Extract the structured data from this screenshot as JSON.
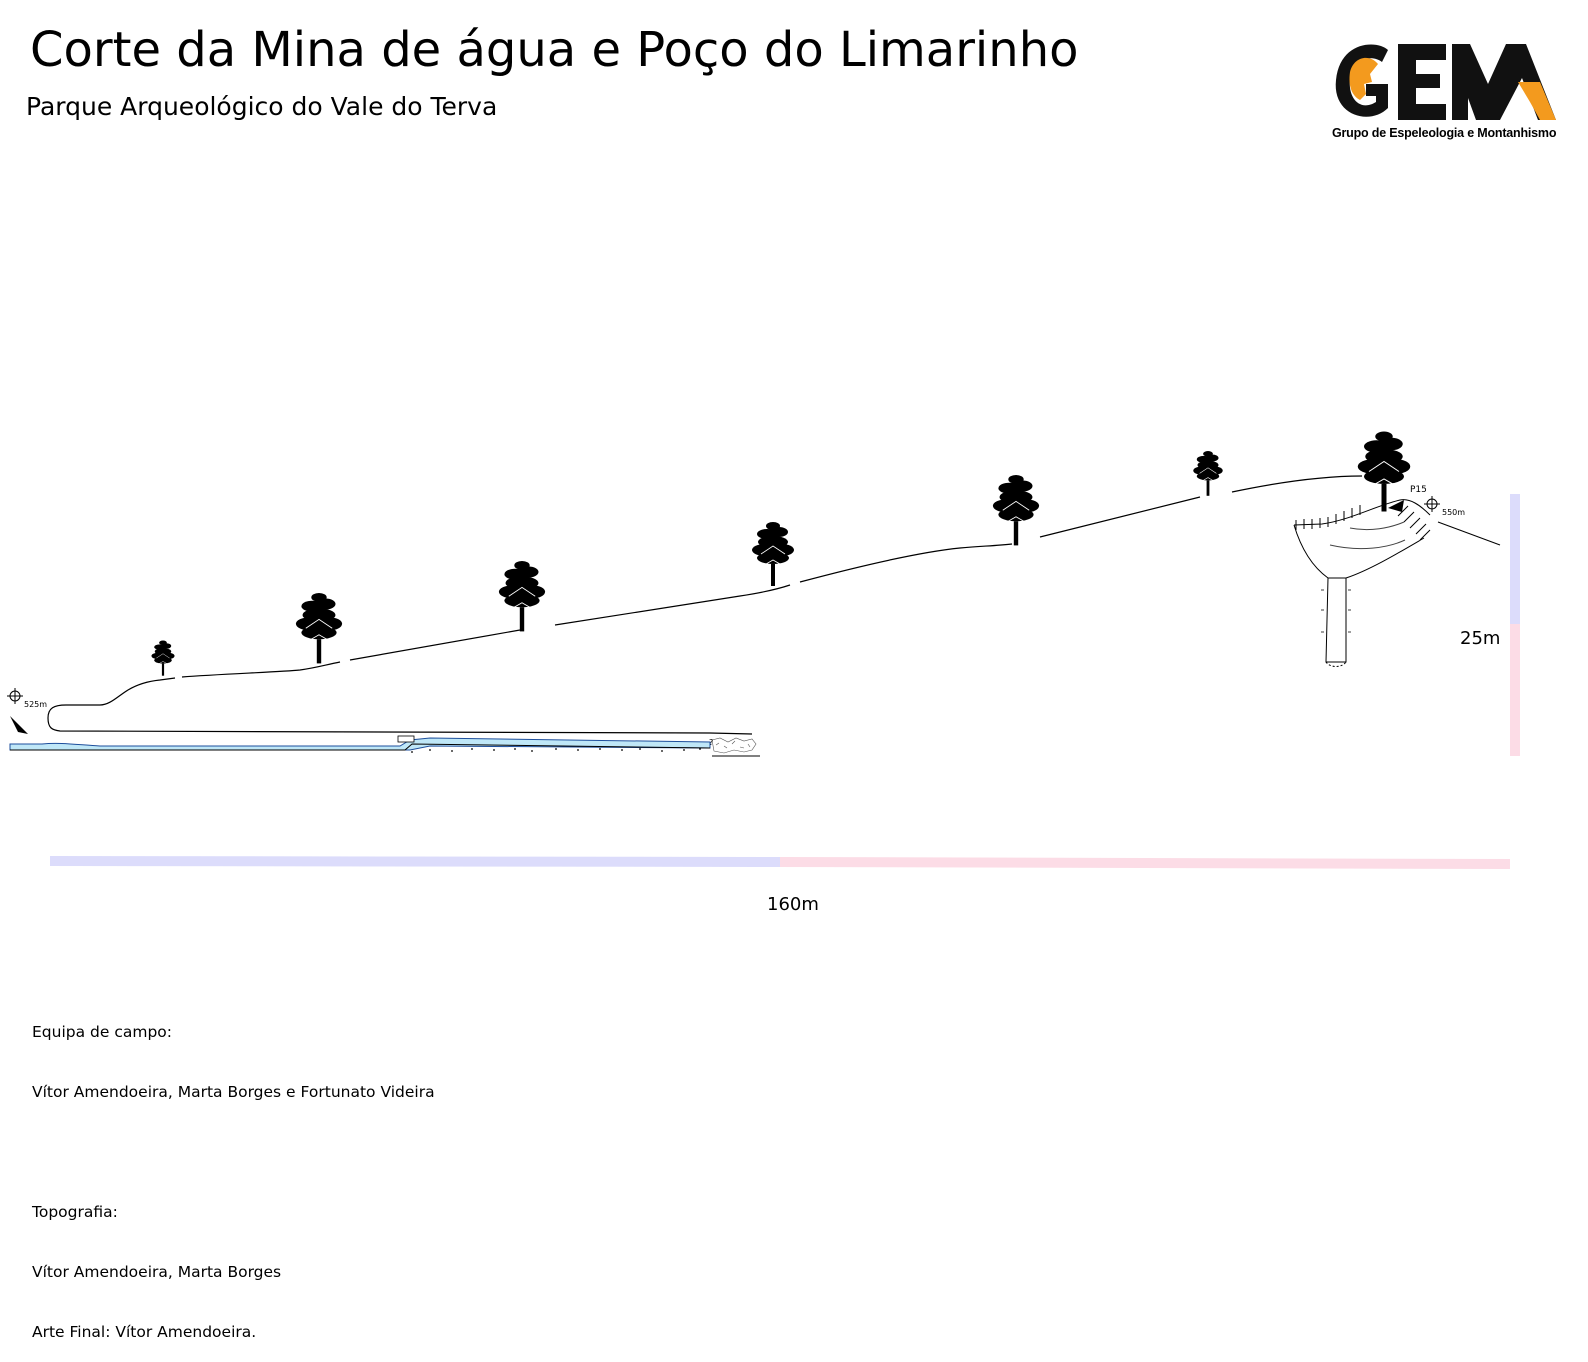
{
  "title": "Corte da Mina de água e Poço do Limarinho",
  "subtitle": "Parque Arqueológico do Vale do Terva",
  "logo": {
    "text": "GEM",
    "caption": "Grupo de Espeleologia e Montanhismo",
    "colors": {
      "letters": "#111111",
      "accent": "#f39a1e"
    }
  },
  "diagram": {
    "elevation_entrance": "525m",
    "elevation_top": "550m",
    "shaft_label": "P15",
    "unknown_marker": "?",
    "scale_horizontal": "160m",
    "scale_vertical": "25m",
    "colors": {
      "water": "#bfe7f7",
      "scale_a": "#dcdcfb",
      "scale_b": "#fcdce6"
    }
  },
  "credits": {
    "field_team_label": "Equipa de campo:",
    "field_team": "Vítor Amendoeira, Marta Borges e Fortunato Videira",
    "topography_label": "Topografia:",
    "topography": "Vítor Amendoeira, Marta Borges",
    "final_art": "Arte Final: Vítor Amendoeira."
  }
}
